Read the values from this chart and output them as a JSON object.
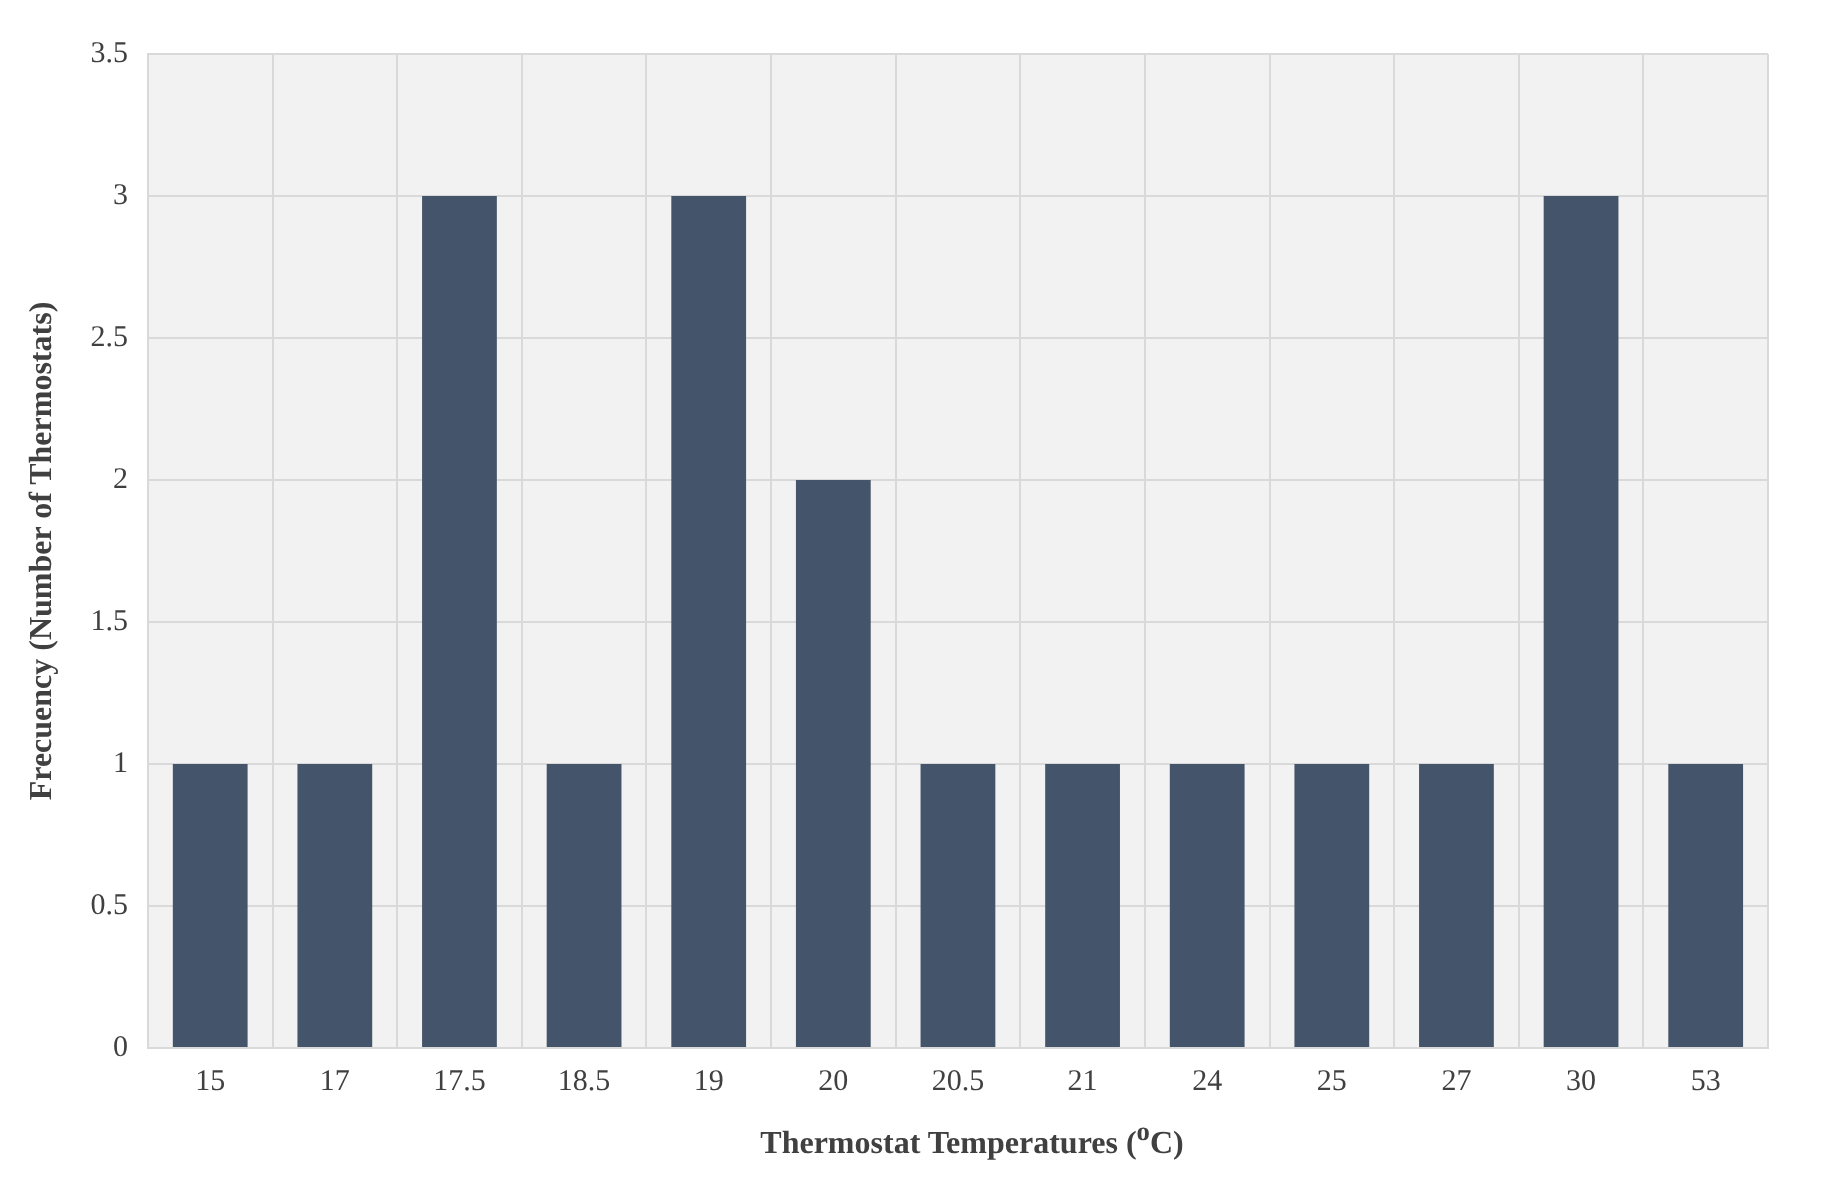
{
  "chart_data": {
    "type": "bar",
    "xlabel": "Thermostat Temperatures ($^{o}$C)",
    "ylabel": "Frecuency (Number of Thermostats)",
    "categories": [
      "15",
      "17",
      "17.5",
      "18.5",
      "19",
      "20",
      "20.5",
      "21",
      "24",
      "25",
      "27",
      "30",
      "53"
    ],
    "values": [
      1,
      1,
      3,
      1,
      3,
      2,
      1,
      1,
      1,
      1,
      1,
      3,
      1
    ],
    "color": "#44546a",
    "ylim": [
      0,
      3.5
    ],
    "yticks": [
      0,
      0.5,
      1,
      1.5,
      2,
      2.5,
      3,
      3.5
    ],
    "grid": true,
    "legend": false
  }
}
